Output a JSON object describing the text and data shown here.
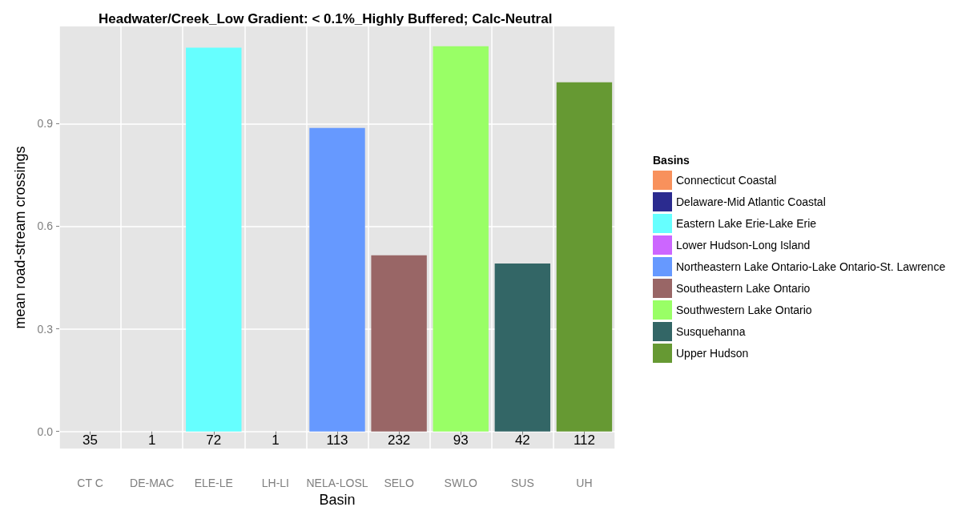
{
  "chart_data": {
    "type": "bar",
    "title": "Headwater/Creek_Low Gradient: < 0.1%_Highly Buffered; Calc-Neutral",
    "xlabel": "Basin",
    "ylabel": "mean road-stream crossings",
    "legend_title": "Basins",
    "categories": [
      "CT C",
      "DE-MAC",
      "ELE-LE",
      "LH-LI",
      "NELA-LOSL",
      "SELO",
      "SWLO",
      "SUS",
      "UH"
    ],
    "stacked": true,
    "series": [
      {
        "name": "Connecticut Coastal",
        "color": "#f8915c",
        "values": [
          0,
          null,
          null,
          null,
          null,
          null,
          null,
          null,
          null
        ]
      },
      {
        "name": "Delaware-Mid Atlantic Coastal",
        "color": "#2b2b8f",
        "values": [
          null,
          0,
          null,
          null,
          null,
          null,
          null,
          null,
          null
        ]
      },
      {
        "name": "Eastern Lake Erie-Lake Erie",
        "color": "#66ffff",
        "values": [
          null,
          null,
          1.122,
          null,
          null,
          null,
          null,
          null,
          null
        ]
      },
      {
        "name": "Lower Hudson-Long Island",
        "color": "#cc66ff",
        "values": [
          null,
          null,
          null,
          0,
          null,
          null,
          null,
          null,
          null
        ]
      },
      {
        "name": "Northeastern Lake Ontario-Lake Ontario-St. Lawrence",
        "color": "#6699ff",
        "values": [
          null,
          null,
          null,
          null,
          0.887,
          null,
          null,
          null,
          null
        ]
      },
      {
        "name": "Southeastern Lake Ontario",
        "color": "#996666",
        "values": [
          null,
          null,
          null,
          null,
          null,
          0.515,
          null,
          null,
          null
        ]
      },
      {
        "name": "Southwestern Lake Ontario",
        "color": "#99ff66",
        "values": [
          null,
          null,
          null,
          null,
          null,
          null,
          1.126,
          null,
          null
        ]
      },
      {
        "name": "Susquehanna",
        "color": "#336666",
        "values": [
          null,
          null,
          null,
          null,
          null,
          null,
          null,
          0.491,
          null
        ]
      },
      {
        "name": "Upper Hudson",
        "color": "#669933",
        "values": [
          null,
          null,
          null,
          null,
          null,
          null,
          null,
          null,
          1.021
        ]
      }
    ],
    "ylim": [
      -0.05,
      1.184
    ],
    "yticks": [
      {
        "value": 0,
        "label": "0.0"
      },
      0.3,
      0.6,
      0.9
    ],
    "grid": true,
    "legend": "right",
    "annotations": [
      {
        "text": "35",
        "x": "CT C",
        "y": 0
      },
      {
        "text": "1",
        "x": "DE-MAC",
        "y": 0
      },
      {
        "text": "72",
        "x": "ELE-LE",
        "y": 0
      },
      {
        "text": "1",
        "x": "LH-LI",
        "y": 0
      },
      {
        "text": "113",
        "x": "NELA-LOSL",
        "y": 0
      },
      {
        "text": "232",
        "x": "SELO",
        "y": 0
      },
      {
        "text": "93",
        "x": "SWLO",
        "y": 0
      },
      {
        "text": "42",
        "x": "SUS",
        "y": 0
      },
      {
        "text": "112",
        "x": "UH",
        "y": 0
      }
    ]
  }
}
